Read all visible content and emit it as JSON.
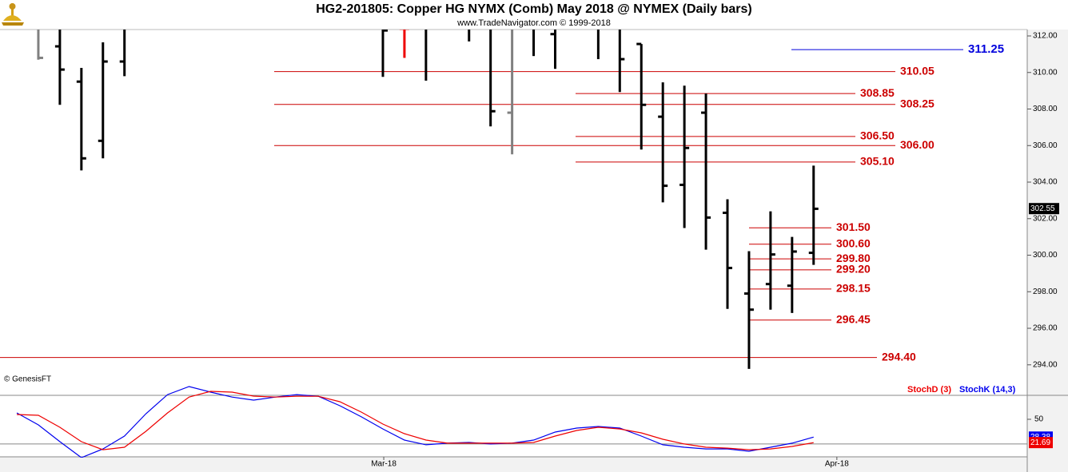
{
  "chart_data": [
    {
      "type": "ohlc",
      "title": "HG2-201805:  Copper HG NYMX (Comb) May 2018 @ NYMEX  (Daily bars)",
      "subtitle": "www.TradeNavigator.com © 1999-2018",
      "annotation": "© GenesisFT",
      "xlim": [
        -1.78,
        45.92
      ],
      "ylim": [
        292.33,
        312.35
      ],
      "yticks": [
        {
          "value": 294,
          "label": "294.00"
        },
        {
          "value": 296,
          "label": "296.00"
        },
        {
          "value": 298,
          "label": "298.00"
        },
        {
          "value": 300,
          "label": "300.00"
        },
        {
          "value": 302,
          "label": "302.00"
        },
        {
          "value": 304,
          "label": "304.00"
        },
        {
          "value": 306,
          "label": "306.00"
        },
        {
          "value": 308,
          "label": "308.00"
        },
        {
          "value": 310,
          "label": "310.00"
        },
        {
          "value": 312,
          "label": "312.00"
        }
      ],
      "x": [
        0,
        1,
        2,
        3,
        4,
        16,
        17,
        18,
        20,
        21,
        22,
        23,
        24,
        26,
        27,
        28,
        29,
        30,
        31,
        32,
        33,
        34,
        35,
        36
      ],
      "open": [
        312.5,
        311.43,
        309.5,
        306.26,
        310.6,
        312.5,
        312.4,
        312.5,
        312.5,
        312.5,
        307.8,
        312.5,
        312.1,
        312.5,
        312.5,
        311.56,
        307.58,
        303.85,
        307.8,
        302.32,
        297.9,
        298.42,
        298.33,
        300.13
      ],
      "high": [
        312.6,
        312.6,
        310.25,
        311.65,
        312.6,
        312.6,
        312.6,
        312.6,
        312.6,
        312.6,
        312.6,
        312.6,
        312.6,
        312.6,
        312.6,
        311.56,
        309.46,
        309.28,
        308.85,
        303.06,
        300.22,
        302.4,
        301.0,
        304.9
      ],
      "low": [
        310.7,
        308.23,
        304.64,
        305.3,
        309.8,
        309.76,
        310.8,
        309.55,
        311.7,
        307.05,
        305.52,
        310.9,
        310.2,
        310.73,
        308.93,
        305.78,
        302.89,
        301.49,
        300.3,
        297.06,
        293.78,
        297.02,
        296.84,
        299.47
      ],
      "close": [
        310.8,
        310.16,
        305.3,
        310.6,
        312.5,
        312.3,
        312.4,
        312.5,
        312.5,
        307.88,
        312.5,
        312.5,
        312.5,
        312.5,
        310.73,
        308.23,
        303.8,
        305.87,
        302.06,
        299.3,
        297.02,
        300.04,
        300.2,
        302.54
      ],
      "colors": [
        "#808080",
        "#000000",
        "#000000",
        "#000000",
        "#000000",
        "#000000",
        "#ee0000",
        "#000000",
        "#000000",
        "#000000",
        "#808080",
        "#000000",
        "#000000",
        "#000000",
        "#000000",
        "#000000",
        "#000000",
        "#000000",
        "#000000",
        "#000000",
        "#000000",
        "#000000",
        "#000000",
        "#000000"
      ],
      "levels": [
        311.25,
        310.05,
        308.85,
        308.25,
        {
          "value": 306.5,
          "label": "306.50"
        },
        {
          "value": 306,
          "label": "306.00"
        },
        {
          "value": 305.1,
          "label": "305.10"
        },
        {
          "value": 301.5,
          "label": "301.50"
        },
        {
          "value": 300.6,
          "label": "300.60"
        },
        {
          "value": 299.8,
          "label": "299.80"
        },
        {
          "value": 299.2,
          "label": "299.20"
        },
        298.15,
        296.45,
        {
          "value": 294.4,
          "label": "294.40"
        }
      ],
      "level_colors": [
        "#0000dd",
        "#cc0000",
        "#cc0000",
        "#cc0000",
        "#cc0000",
        "#cc0000",
        "#cc0000",
        "#cc0000",
        "#cc0000",
        "#cc0000",
        "#cc0000",
        "#cc0000",
        "#cc0000",
        "#cc0000"
      ],
      "last_price": 302.55
    },
    {
      "type": "line",
      "xlim": [
        -1.78,
        45.92
      ],
      "ylim": [
        3.4,
        103.4
      ],
      "yticks": [
        50
      ],
      "reference_lines": [
        20
      ],
      "xticks": [
        {
          "value": 16.04,
          "label": "Mar-18"
        },
        {
          "value": 37.08,
          "label": "Apr-18"
        }
      ],
      "x": [
        -1,
        0,
        1,
        2,
        3,
        4,
        5,
        6,
        7,
        8,
        9,
        10,
        11,
        12,
        13,
        14,
        15,
        16,
        17,
        18,
        19,
        20,
        21,
        22,
        23,
        24,
        25,
        26,
        27,
        28,
        29,
        30,
        31,
        32,
        33,
        34,
        35,
        36
      ],
      "series": [
        {
          "name": "StochD (3)",
          "color": "#ee0000",
          "values": [
            55.8,
            54.9,
            40.3,
            22.8,
            13,
            16,
            35.4,
            57.8,
            77,
            84,
            83,
            78.2,
            77,
            78,
            78,
            71.4,
            58.7,
            44.2,
            32.5,
            24.8,
            21,
            21,
            21,
            21,
            21.8,
            29.6,
            36.4,
            40.3,
            38.3,
            33.5,
            25.7,
            20,
            16,
            15,
            13,
            14,
            17,
            21.69
          ]
        },
        {
          "name": "StochK (14,3)",
          "color": "#0000ee",
          "values": [
            57.8,
            43.2,
            22.8,
            3.4,
            14,
            29.6,
            56.8,
            80,
            89.8,
            83,
            77,
            73.3,
            77,
            80,
            78,
            66.5,
            53,
            38.3,
            24.8,
            19,
            21,
            21.8,
            20,
            21,
            24.8,
            34.5,
            39.3,
            41.3,
            39.3,
            29.6,
            19,
            16,
            14,
            14,
            11.2,
            16,
            21,
            28.38
          ]
        }
      ]
    }
  ]
}
